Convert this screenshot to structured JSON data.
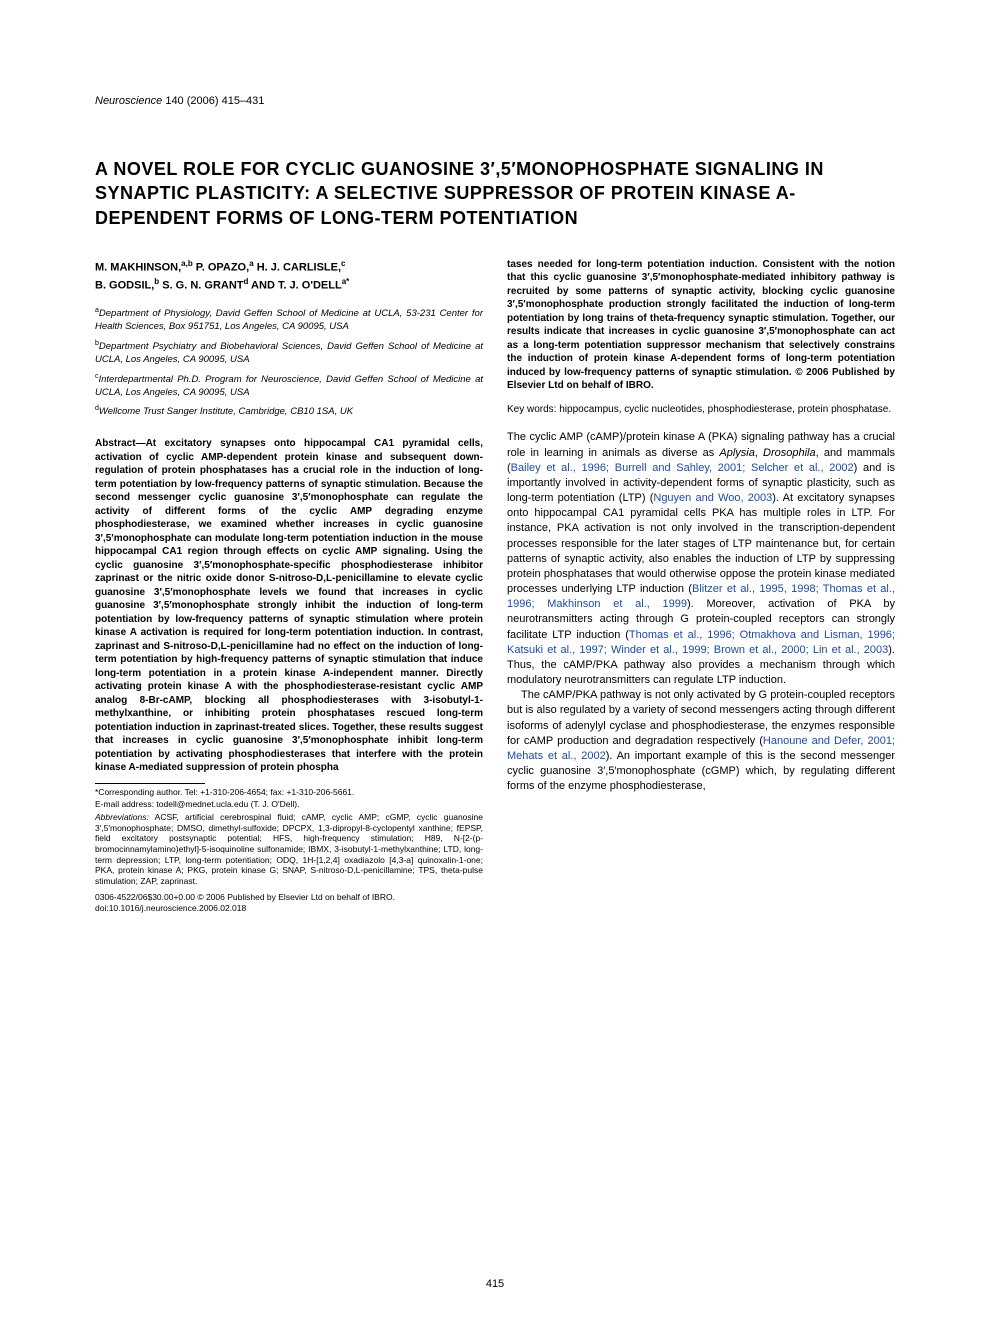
{
  "header": {
    "journal": "Neuroscience",
    "citation": " 140 (2006) 415–431"
  },
  "title": "A NOVEL ROLE FOR CYCLIC GUANOSINE 3′,5′MONOPHOSPHATE SIGNALING IN SYNAPTIC PLASTICITY: A SELECTIVE SUPPRESSOR OF PROTEIN KINASE A-DEPENDENT FORMS OF LONG-TERM POTENTIATION",
  "authors_line1": "M. MAKHINSON,",
  "authors_sup1": "a,b",
  "authors_line2": " P. OPAZO,",
  "authors_sup2": "a",
  "authors_line3": " H. J. CARLISLE,",
  "authors_sup3": "c",
  "authors_line4": "B. GODSIL,",
  "authors_sup4": "b",
  "authors_line5": " S. G. N. GRANT",
  "authors_sup5": "d",
  "authors_line6": " AND T. J. O'DELL",
  "authors_sup6": "a*",
  "affiliations": {
    "a": "Department of Physiology, David Geffen School of Medicine at UCLA, 53-231 Center for Health Sciences, Box 951751, Los Angeles, CA 90095, USA",
    "b": "Department Psychiatry and Biobehavioral Sciences, David Geffen School of Medicine at UCLA, Los Angeles, CA 90095, USA",
    "c": "Interdepartmental Ph.D. Program for Neuroscience, David Geffen School of Medicine at UCLA, Los Angeles, CA 90095, USA",
    "d": "Wellcome Trust Sanger Institute, Cambridge, CB10 1SA, UK"
  },
  "abstract_label": "Abstract—",
  "abstract_col1": "At excitatory synapses onto hippocampal CA1 pyramidal cells, activation of cyclic AMP-dependent protein kinase and subsequent down-regulation of protein phosphatases has a crucial role in the induction of long-term potentiation by low-frequency patterns of synaptic stimulation. Because the second messenger cyclic guanosine 3′,5′monophosphate can regulate the activity of different forms of the cyclic AMP degrading enzyme phosphodiesterase, we examined whether increases in cyclic guanosine 3′,5′monophosphate can modulate long-term potentiation induction in the mouse hippocampal CA1 region through effects on cyclic AMP signaling. Using the cyclic guanosine 3′,5′monophosphate-specific phosphodiesterase inhibitor zaprinast or the nitric oxide donor S-nitroso-D,L-penicillamine to elevate cyclic guanosine 3′,5′monophosphate levels we found that increases in cyclic guanosine 3′,5′monophosphate strongly inhibit the induction of long-term potentiation by low-frequency patterns of synaptic stimulation where protein kinase A activation is required for long-term potentiation induction. In contrast, zaprinast and S-nitroso-D,L-penicillamine had no effect on the induction of long-term potentiation by high-frequency patterns of synaptic stimulation that induce long-term potentiation in a protein kinase A-independent manner. Directly activating protein kinase A with the phosphodiesterase-resistant cyclic AMP analog 8-Br-cAMP, blocking all phosphodiesterases with 3-isobutyl-1-methylxanthine, or inhibiting protein phosphatases rescued long-term potentiation induction in zaprinast-treated slices. Together, these results suggest that increases in cyclic guanosine 3′,5′monophosphate inhibit long-term potentiation by activating phosphodiesterases that interfere with the protein kinase A-mediated suppression of protein phospha",
  "abstract_col2": "tases needed for long-term potentiation induction. Consistent with the notion that this cyclic guanosine 3′,5′monophosphate-mediated inhibitory pathway is recruited by some patterns of synaptic activity, blocking cyclic guanosine 3′,5′monophosphate production strongly facilitated the induction of long-term potentiation by long trains of theta-frequency synaptic stimulation. Together, our results indicate that increases in cyclic guanosine 3′,5′monophosphate can act as a long-term potentiation suppressor mechanism that selectively constrains the induction of protein kinase A-dependent forms of long-term potentiation induced by low-frequency patterns of synaptic stimulation. © 2006 Published by Elsevier Ltd on behalf of IBRO.",
  "keywords_label": "Key words: ",
  "keywords": "hippocampus, cyclic nucleotides, phosphodiesterase, protein phosphatase.",
  "body_p1_a": "The cyclic AMP (cAMP)/protein kinase A (PKA) signaling pathway has a crucial role in learning in animals as diverse as ",
  "body_p1_taxon1": "Aplysia",
  "body_p1_b": ", ",
  "body_p1_taxon2": "Drosophila",
  "body_p1_c": ", and mammals (",
  "body_p1_ref1": "Bailey et al., 1996; Burrell and Sahley, 2001; Selcher et al., 2002",
  "body_p1_d": ") and is importantly involved in activity-dependent forms of synaptic plasticity, such as long-term potentiation (LTP) (",
  "body_p1_ref2": "Nguyen and Woo, 2003",
  "body_p1_e": "). At excitatory synapses onto hippocampal CA1 pyramidal cells PKA has multiple roles in LTP. For instance, PKA activation is not only involved in the transcription-dependent processes responsible for the later stages of LTP maintenance but, for certain patterns of synaptic activity, also enables the induction of LTP by suppressing protein phosphatases that would otherwise oppose the protein kinase mediated processes underlying LTP induction (",
  "body_p1_ref3": "Blitzer et al., 1995, 1998; Thomas et al., 1996; Makhinson et al., 1999",
  "body_p1_f": "). Moreover, activation of PKA by neurotransmitters acting through G protein-coupled receptors can strongly facilitate LTP induction (",
  "body_p1_ref4": "Thomas et al., 1996; Otmakhova and Lisman, 1996; Katsuki et al., 1997; Winder et al., 1999; Brown et al., 2000; Lin et al., 2003",
  "body_p1_g": "). Thus, the cAMP/PKA pathway also provides a mechanism through which modulatory neurotransmitters can regulate LTP induction.",
  "body_p2_a": "The cAMP/PKA pathway is not only activated by G protein-coupled receptors but is also regulated by a variety of second messengers acting through different isoforms of adenylyl cyclase and phosphodiesterase, the enzymes responsible for cAMP production and degradation respectively (",
  "body_p2_ref1": "Hanoune and Defer, 2001; Mehats et al., 2002",
  "body_p2_b": "). An important example of this is the second messenger cyclic guanosine 3′,5′monophosphate (cGMP) which, by regulating different forms of the enzyme phosphodiesterase,",
  "footnotes": {
    "corresponding": "*Corresponding author. Tel: +1-310-206-4654; fax: +1-310-206-5661.",
    "email_label": "E-mail address: ",
    "email": "todell@mednet.ucla.edu (T. J. O'Dell).",
    "abbr_label": "Abbreviations:",
    "abbr": " ACSF, artificial cerebrospinal fluid; cAMP, cyclic AMP; cGMP, cyclic guanosine 3′,5′monophosphate; DMSO, dimethyl-sulfoxide; DPCPX, 1,3-dipropyl-8-cyclopentyl xanthine; fEPSP, field excitatory postsynaptic potential; HFS, high-frequency stimulation; H89, N-[2-(p-bromocinnamylamino)ethyl]-5-isoquinoline sulfonamide; IBMX, 3-isobutyl-1-methylxanthine; LTD, long-term depression; LTP, long-term potentiation; ODQ, 1H-[1,2,4] oxadiazolo [4,3-a] quinoxalin-1-one; PKA, protein kinase A; PKG, protein kinase G; SNAP, S-nitroso-D,L-penicillamine; TPS, theta-pulse stimulation; ZAP, zaprinast."
  },
  "doi": {
    "line1": "0306-4522/06$30.00+0.00 © 2006 Published by Elsevier Ltd on behalf of IBRO.",
    "line2": "doi:10.1016/j.neuroscience.2006.02.018"
  },
  "page_number": "415"
}
